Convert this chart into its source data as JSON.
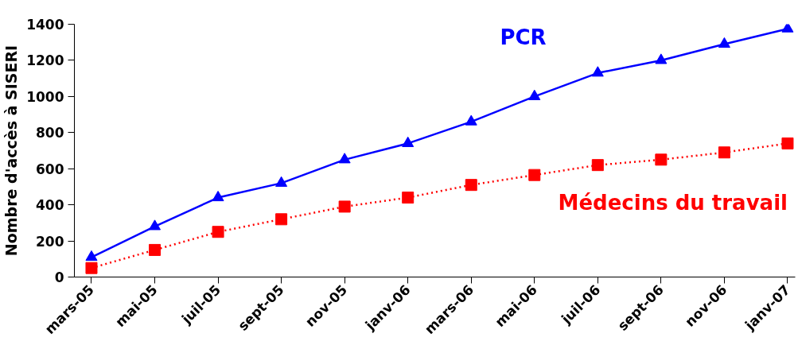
{
  "chart_data": {
    "type": "line",
    "ylabel": "Nombre d'accès à SISERI",
    "categories": [
      "mars-05",
      "mai-05",
      "juil-05",
      "sept-05",
      "nov-05",
      "janv-06",
      "mars-06",
      "mai-06",
      "juil-06",
      "sept-06",
      "nov-06",
      "janv-07"
    ],
    "series": [
      {
        "name": "PCR",
        "color": "#0000ff",
        "marker": "triangle",
        "line_style": "solid",
        "values": [
          110,
          280,
          440,
          520,
          650,
          740,
          860,
          1000,
          1130,
          1200,
          1290,
          1375
        ]
      },
      {
        "name": "Médecins du travail",
        "color": "#ff0000",
        "marker": "square",
        "line_style": "dotted",
        "values": [
          50,
          150,
          250,
          320,
          390,
          440,
          510,
          565,
          620,
          650,
          690,
          740
        ]
      }
    ],
    "ylim": [
      0,
      1400
    ],
    "yticks": [
      0,
      200,
      400,
      600,
      800,
      1000,
      1200,
      1400
    ],
    "grid": false
  }
}
